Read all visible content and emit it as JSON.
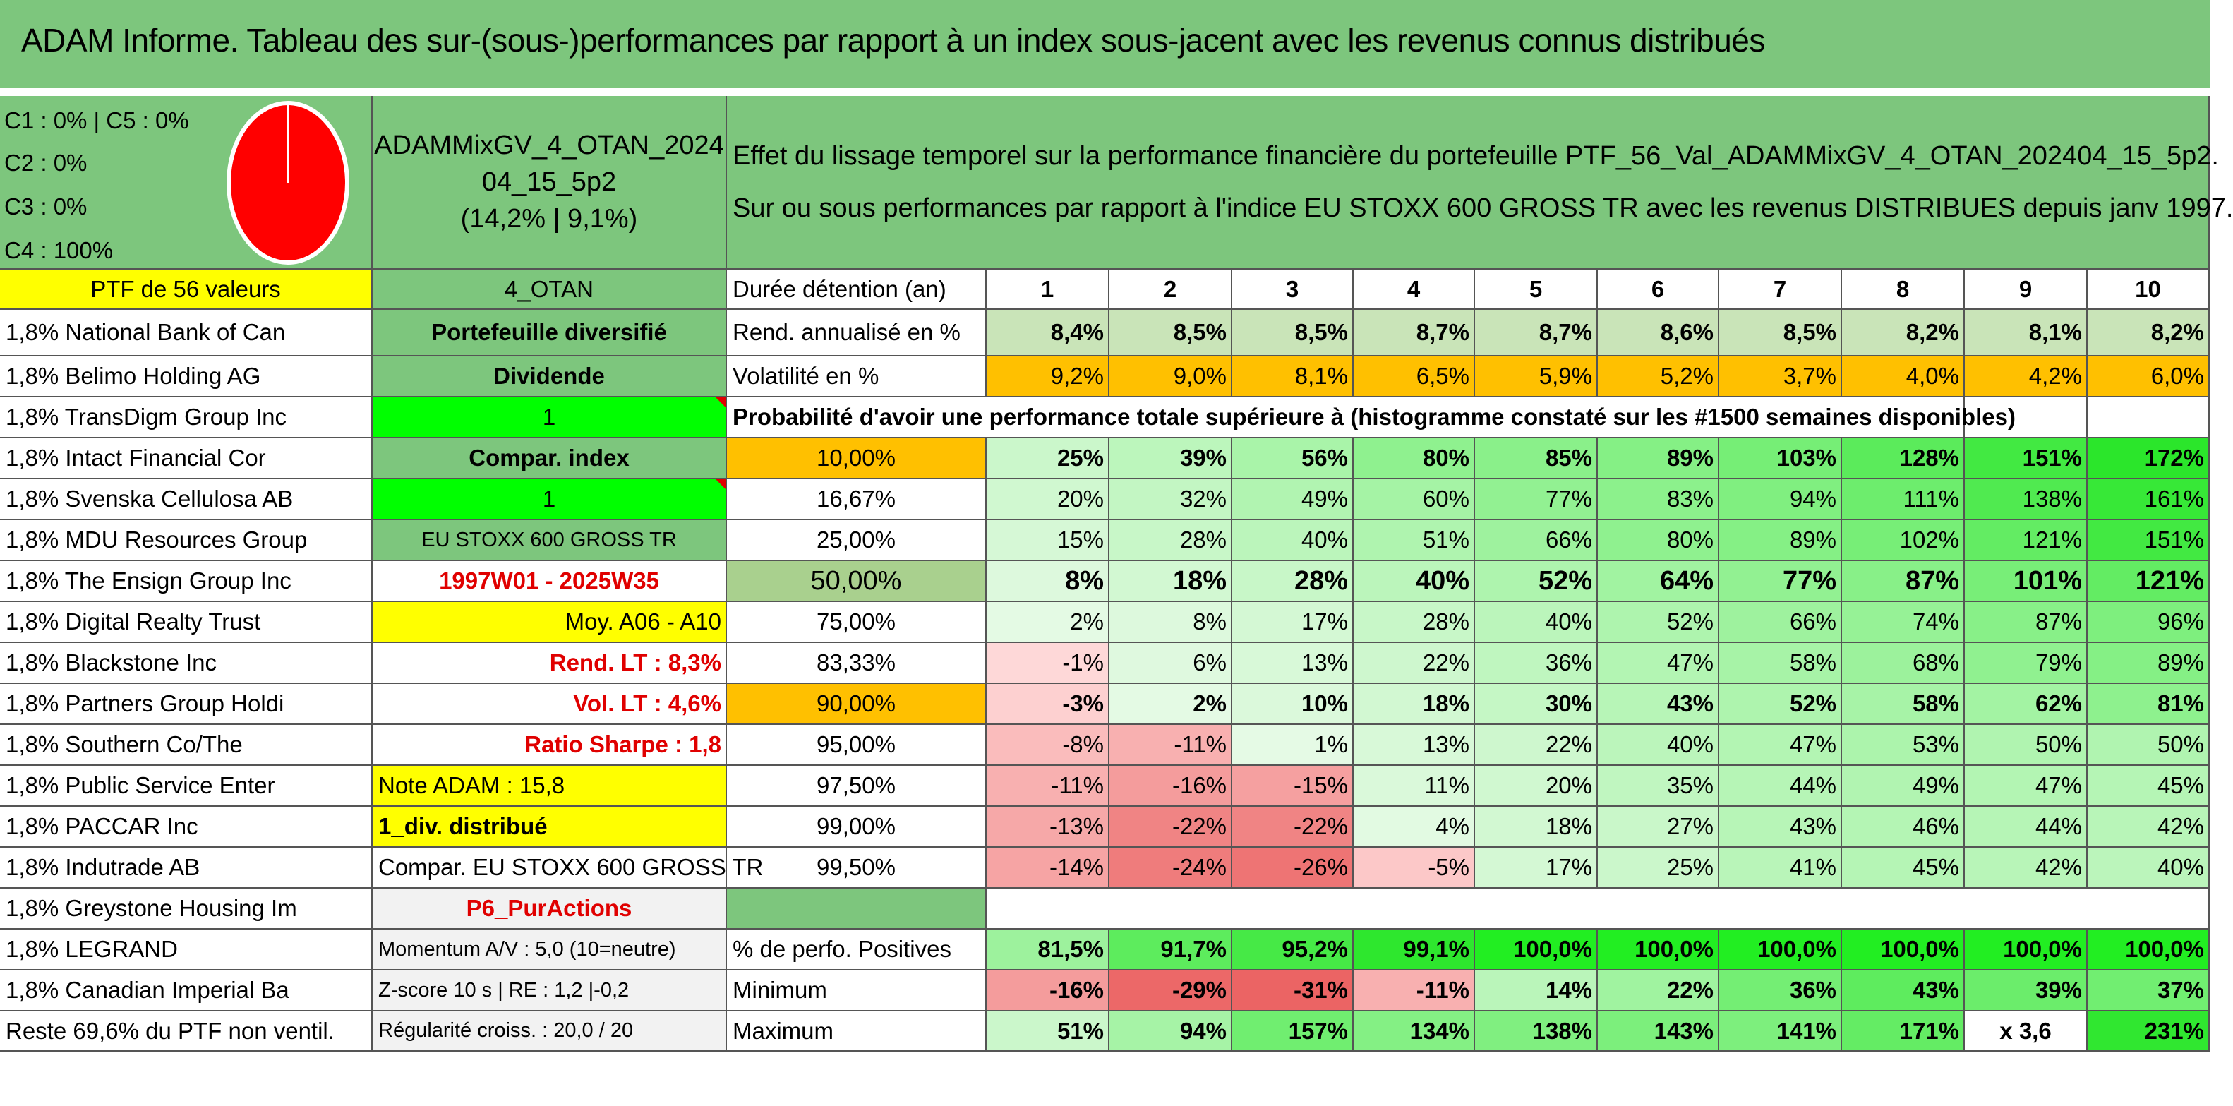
{
  "title": "ADAM Informe. Tableau des sur-(sous-)performances par rapport à un index sous-jacent avec les revenus connus distribués",
  "legend": {
    "line1": "C1 : 0% | C5 : 0%",
    "line2": "C2 : 0%",
    "line3": "C3 : 0%",
    "line4": "C4 : 100%"
  },
  "portfolio": {
    "name_line1": "ADAMMixGV_4_OTAN_2024",
    "name_line2": "04_15_5p2",
    "name_line3": "(14,2% | 9,1%)"
  },
  "description": {
    "line1": "Effet du lissage temporel sur la performance financière du portefeuille PTF_56_Val_ADAMMixGV_4_OTAN_202404_15_5p2.",
    "line2": "Sur ou sous performances par rapport à l'indice EU STOXX 600 GROSS TR avec les revenus DISTRIBUES depuis janv 1997."
  },
  "col_a": [
    "PTF de 56 valeurs",
    "1,8% National Bank of Can",
    "1,8% Belimo Holding AG",
    "1,8% TransDigm Group Inc",
    "1,8% Intact Financial Cor",
    "1,8% Svenska Cellulosa AB",
    "1,8% MDU Resources Group",
    "1,8% The Ensign Group Inc",
    "1,8% Digital Realty Trust",
    "1,8% Blackstone Inc",
    "1,8% Partners Group Holdi",
    "1,8% Southern Co/The",
    "1,8% Public Service Enter",
    "1,8% PACCAR Inc",
    "1,8% Indutrade AB",
    "1,8% Greystone Housing Im",
    "1,8% LEGRAND",
    "1,8% Canadian Imperial Ba",
    "Reste 69,6% du PTF non ventil."
  ],
  "col_b": [
    "4_OTAN",
    "Portefeuille diversifié",
    "Dividende",
    "1",
    "Compar. index",
    "1",
    "EU STOXX 600 GROSS TR",
    "1997W01 - 2025W35",
    "Moy. A06 - A10",
    "Rend. LT : 8,3%",
    "Vol. LT : 4,6%",
    "Ratio Sharpe : 1,8",
    "Note ADAM : 15,8",
    "1_div. distribué",
    "Compar. EU STOXX 600 GROSS TR",
    "P6_PurActions",
    "Momentum A/V : 5,0 (10=neutre)",
    "Z-score 10 s | RE : 1,2 |-0,2",
    "Régularité croiss. : 20,0 / 20"
  ],
  "header_label": "Durée détention (an)",
  "years": [
    "1",
    "2",
    "3",
    "4",
    "5",
    "6",
    "7",
    "8",
    "9",
    "10"
  ],
  "rend_label": "Rend. annualisé en %",
  "rend": [
    "8,4%",
    "8,5%",
    "8,5%",
    "8,7%",
    "8,7%",
    "8,6%",
    "8,5%",
    "8,2%",
    "8,1%",
    "8,2%"
  ],
  "vol_label": "Volatilité en %",
  "vol": [
    "9,2%",
    "9,0%",
    "8,1%",
    "6,5%",
    "5,9%",
    "5,2%",
    "3,7%",
    "4,0%",
    "4,2%",
    "6,0%"
  ],
  "prob_label": "Probabilité d'avoir une performance totale supérieure à (histogramme constaté sur les #1500 semaines disponibles)",
  "quantiles": [
    {
      "p": "10,00%",
      "v": [
        "25%",
        "39%",
        "56%",
        "80%",
        "85%",
        "89%",
        "103%",
        "128%",
        "151%",
        "172%"
      ]
    },
    {
      "p": "16,67%",
      "v": [
        "20%",
        "32%",
        "49%",
        "60%",
        "77%",
        "83%",
        "94%",
        "111%",
        "138%",
        "161%"
      ]
    },
    {
      "p": "25,00%",
      "v": [
        "15%",
        "28%",
        "40%",
        "51%",
        "66%",
        "80%",
        "89%",
        "102%",
        "121%",
        "151%"
      ]
    },
    {
      "p": "50,00%",
      "v": [
        "8%",
        "18%",
        "28%",
        "40%",
        "52%",
        "64%",
        "77%",
        "87%",
        "101%",
        "121%"
      ]
    },
    {
      "p": "75,00%",
      "v": [
        "2%",
        "8%",
        "17%",
        "28%",
        "40%",
        "52%",
        "66%",
        "74%",
        "87%",
        "96%"
      ]
    },
    {
      "p": "83,33%",
      "v": [
        "-1%",
        "6%",
        "13%",
        "22%",
        "36%",
        "47%",
        "58%",
        "68%",
        "79%",
        "89%"
      ]
    },
    {
      "p": "90,00%",
      "v": [
        "-3%",
        "2%",
        "10%",
        "18%",
        "30%",
        "43%",
        "52%",
        "58%",
        "62%",
        "81%"
      ]
    },
    {
      "p": "95,00%",
      "v": [
        "-8%",
        "-11%",
        "1%",
        "13%",
        "22%",
        "40%",
        "47%",
        "53%",
        "50%",
        "50%"
      ]
    },
    {
      "p": "97,50%",
      "v": [
        "-11%",
        "-16%",
        "-15%",
        "11%",
        "20%",
        "35%",
        "44%",
        "49%",
        "47%",
        "45%"
      ]
    },
    {
      "p": "99,00%",
      "v": [
        "-13%",
        "-22%",
        "-22%",
        "4%",
        "18%",
        "27%",
        "43%",
        "46%",
        "44%",
        "42%"
      ]
    },
    {
      "p": "99,50%",
      "v": [
        "-14%",
        "-24%",
        "-26%",
        "-5%",
        "17%",
        "25%",
        "41%",
        "45%",
        "42%",
        "40%"
      ]
    }
  ],
  "pos_label": "% de perfo. Positives",
  "pos": [
    "81,5%",
    "91,7%",
    "95,2%",
    "99,1%",
    "100,0%",
    "100,0%",
    "100,0%",
    "100,0%",
    "100,0%",
    "100,0%"
  ],
  "min_label": "Minimum",
  "min": [
    "-16%",
    "-29%",
    "-31%",
    "-11%",
    "14%",
    "22%",
    "36%",
    "43%",
    "39%",
    "37%"
  ],
  "max_label": "Maximum",
  "max": [
    "51%",
    "94%",
    "157%",
    "134%",
    "138%",
    "143%",
    "141%",
    "171%",
    "x 3,6",
    "231%"
  ],
  "colors": {
    "header_green": "#7dc67d",
    "yellow": "#ffff00",
    "bright_green": "#00ff00",
    "orange": "#ffc000",
    "pie_red": "#ff0000",
    "label_red": "#e00000"
  }
}
